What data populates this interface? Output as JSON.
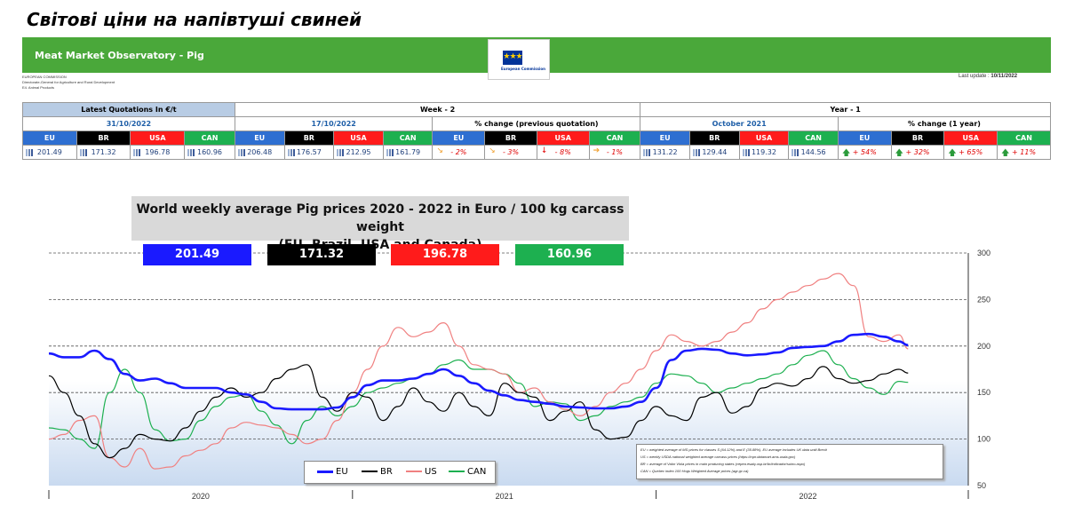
{
  "page_title": "Світові ціни на напівтуші свиней",
  "banner": {
    "title": "Meat Market Observatory - Pig",
    "logo_text": "European Commission",
    "sub_lines": [
      "EUROPEAN COMMISSION",
      "Directorate-General for Agriculture and Rural Development",
      "E4. Animal Products"
    ],
    "last_update_label": "Last update :",
    "last_update_value": "10/11/2022"
  },
  "table": {
    "latest_header": "Latest Quotations In €/t",
    "week_header": "Week - 2",
    "year_header": "Year - 1",
    "latest_date": "31/10/2022",
    "week_date": "17/10/2022",
    "year_date": "October 2021",
    "pct_prev_label": "% change (previous quotation)",
    "pct_year_label": "% change (1 year)",
    "countries": [
      "EU",
      "BR",
      "USA",
      "CAN"
    ],
    "latest_values": [
      "201.49",
      "171.32",
      "196.78",
      "160.96"
    ],
    "week_values": [
      "206.48",
      "176.57",
      "212.95",
      "161.79"
    ],
    "week_pct": [
      "- 2%",
      "- 3%",
      "- 8%",
      "- 1%"
    ],
    "year_values": [
      "131.22",
      "129.44",
      "119.32",
      "144.56"
    ],
    "year_pct": [
      "+ 54%",
      "+ 32%",
      "+ 65%",
      "+ 11%"
    ]
  },
  "colors": {
    "EU": "#1a1aff",
    "BR": "#000000",
    "USA": "#ff1b1b",
    "US": "#f08080",
    "CAN": "#1db050"
  },
  "chart_data": {
    "type": "line",
    "title": "World weekly average Pig prices 2020 - 2022  in Euro / 100 kg carcass weight",
    "subtitle": "(EU, Brazil, USA and Canada)",
    "current_values": [
      "201.49",
      "171.32",
      "196.78",
      "160.96"
    ],
    "ylim": [
      50,
      300
    ],
    "yticks": [
      50,
      100,
      150,
      200,
      250,
      300
    ],
    "xlabels": [
      "2020",
      "2021",
      "2022"
    ],
    "x": [
      0,
      0.05,
      0.1,
      0.15,
      0.2,
      0.25,
      0.3,
      0.35,
      0.4,
      0.45,
      0.5,
      0.55,
      0.6,
      0.65,
      0.7,
      0.75,
      0.8,
      0.85,
      0.9,
      0.95,
      1,
      1.05,
      1.1,
      1.15,
      1.2,
      1.25,
      1.3,
      1.35,
      1.4,
      1.45,
      1.5,
      1.55,
      1.6,
      1.65,
      1.7,
      1.75,
      1.8,
      1.85,
      1.9,
      1.95,
      2,
      2.05,
      2.1,
      2.15,
      2.2,
      2.25,
      2.3,
      2.35,
      2.4,
      2.45,
      2.5,
      2.55,
      2.6,
      2.65,
      2.7,
      2.75,
      2.8,
      2.83
    ],
    "series": [
      {
        "name": "EU",
        "values": [
          192,
          188,
          188,
          195,
          186,
          170,
          163,
          165,
          160,
          155,
          155,
          155,
          150,
          148,
          140,
          133,
          132,
          132,
          132,
          134,
          145,
          158,
          163,
          163,
          165,
          170,
          175,
          168,
          160,
          152,
          147,
          142,
          140,
          138,
          135,
          134,
          133,
          133,
          135,
          140,
          155,
          185,
          195,
          197,
          196,
          192,
          190,
          191,
          193,
          198,
          199,
          200,
          205,
          212,
          213,
          210,
          205,
          201
        ]
      },
      {
        "name": "BR",
        "values": [
          168,
          150,
          125,
          95,
          80,
          90,
          105,
          100,
          98,
          112,
          130,
          145,
          155,
          145,
          150,
          165,
          175,
          180,
          145,
          130,
          150,
          145,
          120,
          135,
          155,
          140,
          130,
          150,
          135,
          125,
          160,
          150,
          145,
          120,
          130,
          140,
          110,
          100,
          102,
          120,
          135,
          125,
          120,
          145,
          150,
          128,
          135,
          155,
          160,
          157,
          165,
          178,
          165,
          160,
          163,
          170,
          175,
          171
        ]
      },
      {
        "name": "US",
        "values": [
          100,
          105,
          120,
          125,
          80,
          70,
          90,
          68,
          70,
          82,
          88,
          95,
          112,
          118,
          115,
          112,
          105,
          95,
          100,
          120,
          150,
          175,
          200,
          220,
          210,
          215,
          225,
          200,
          180,
          175,
          170,
          150,
          155,
          140,
          132,
          125,
          135,
          150,
          160,
          175,
          195,
          212,
          205,
          200,
          205,
          215,
          225,
          240,
          250,
          258,
          265,
          272,
          278,
          265,
          210,
          205,
          212,
          197
        ]
      },
      {
        "name": "CAN",
        "values": [
          112,
          110,
          100,
          90,
          150,
          175,
          150,
          110,
          98,
          100,
          120,
          135,
          145,
          148,
          130,
          115,
          95,
          120,
          135,
          125,
          135,
          150,
          155,
          160,
          165,
          170,
          180,
          185,
          175,
          175,
          170,
          160,
          135,
          140,
          138,
          120,
          125,
          135,
          140,
          145,
          160,
          170,
          168,
          160,
          150,
          155,
          160,
          165,
          170,
          180,
          190,
          195,
          180,
          165,
          155,
          148,
          162,
          161
        ]
      }
    ],
    "legend": [
      "EU",
      "BR",
      "US",
      "CAN"
    ],
    "legend_placement": "bottom-left",
    "notes": [
      "EU    = weighted average of MS prices for classes S (64.12%) and E (35.88%). EU average includes UK data  until Brexit",
      "US    = weekly USDA national weighted average carcass prices (https://mpr.datamart.ams.usda.gov)",
      "BR    = average of Valor Viola prices in main producing states (cepea.esalq.usp.br/br/indicador/suino.aspx)",
      "CAN  = Quebec index 100 Hogs Weighted Average prices (agr.gc.ca)"
    ]
  }
}
